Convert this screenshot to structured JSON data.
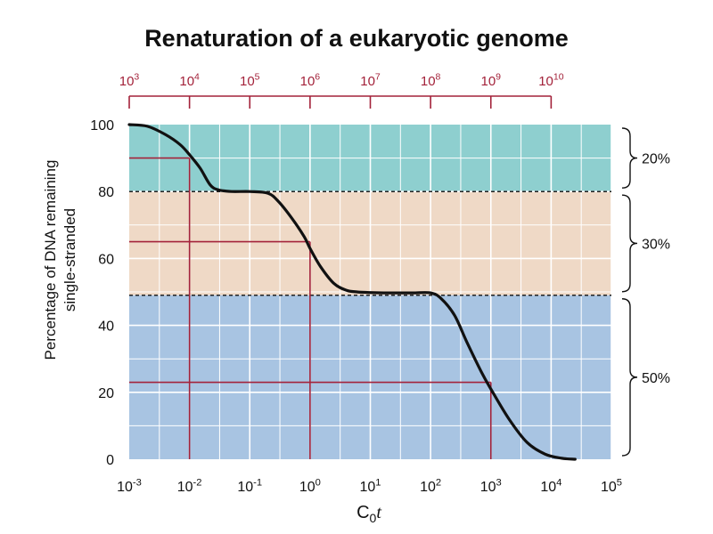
{
  "chart_data": {
    "type": "line",
    "title": "Renaturation of a eukaryotic genome",
    "xlabel": "C0t",
    "ylabel": "Percentage of DNA remaining single-stranded",
    "x_scale": "log",
    "xlim": [
      0.001,
      100000
    ],
    "ylim": [
      0,
      100
    ],
    "x_ticks": [
      "10^-3",
      "10^-2",
      "10^-1",
      "10^0",
      "10^1",
      "10^2",
      "10^3",
      "10^4",
      "10^5"
    ],
    "y_ticks": [
      "0",
      "20",
      "40",
      "60",
      "80",
      "100"
    ],
    "top_scale_labels": [
      "10^3",
      "10^4",
      "10^5",
      "10^6",
      "10^7",
      "10^8",
      "10^9",
      "10^10"
    ],
    "grid": true,
    "bands": [
      {
        "from": 80,
        "to": 100,
        "label": "20%",
        "color": "#8ecfcf"
      },
      {
        "from": 49,
        "to": 80,
        "label": "30%",
        "color": "#efd9c6"
      },
      {
        "from": 0,
        "to": 49,
        "label": "50%",
        "color": "#a8c4e2"
      }
    ],
    "series": [
      {
        "x": [
          0.001,
          0.002,
          0.004,
          0.007,
          0.01,
          0.015,
          0.022,
          0.03,
          0.05,
          0.1,
          0.2,
          0.3,
          0.5,
          0.8,
          1,
          1.5,
          2.5,
          4,
          6,
          10,
          20,
          50,
          100,
          150,
          250,
          400,
          700,
          1000,
          2000,
          4000,
          8000,
          15000,
          25000
        ],
        "y": [
          100,
          99.5,
          97,
          94,
          91,
          87,
          82,
          80.5,
          80,
          80,
          79.5,
          77,
          72,
          66.5,
          63,
          57.5,
          52.5,
          50.5,
          50,
          49.8,
          49.7,
          49.7,
          49.7,
          48,
          43,
          35,
          26,
          21,
          12,
          5,
          1.5,
          0.3,
          0
        ]
      }
    ],
    "midpoints": [
      {
        "x": 0.01,
        "y": 90
      },
      {
        "x": 1,
        "y": 65
      },
      {
        "x": 1000,
        "y": 23
      }
    ],
    "colors": {
      "curve": "#111111",
      "guides": "#a3223a",
      "grid": "#ffffff",
      "divider": "#222222"
    }
  }
}
